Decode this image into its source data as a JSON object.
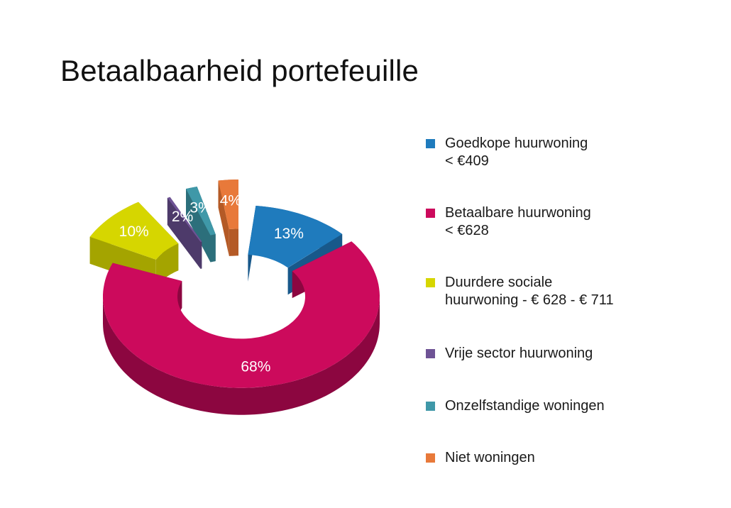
{
  "chart_data": {
    "type": "pie",
    "title": "Betaalbaarheid portefeuille",
    "categories": [
      "Goedkope huurwoning < €409",
      "Betaalbare huurwoning < €628",
      "Duurdere sociale huurwoning - € 628 - € 711",
      "Vrije sector huurwoning",
      "Onzelfstandige woningen",
      "Niet woningen"
    ],
    "values": [
      13,
      68,
      10,
      2,
      3,
      4
    ],
    "data_labels": [
      "13%",
      "68%",
      "10%",
      "2%",
      "3%",
      "4%"
    ],
    "colors": [
      "#1f7bbd",
      "#cc0a5c",
      "#d6d600",
      "#6e5395",
      "#3f98a8",
      "#e8793a"
    ],
    "side_colors": [
      "#18588a",
      "#8c0640",
      "#a4a400",
      "#4d3a6a",
      "#2c6f7b",
      "#b45a26"
    ],
    "legend": [
      {
        "lines": [
          "Goedkope huurwoning",
          "< €409"
        ]
      },
      {
        "lines": [
          "Betaalbare huurwoning",
          "< €628"
        ]
      },
      {
        "lines": [
          "Duurdere sociale",
          "huurwoning - € 628 - € 711"
        ]
      },
      {
        "lines": [
          "Vrije sector huurwoning"
        ]
      },
      {
        "lines": [
          "Onzelfstandige woningen"
        ]
      },
      {
        "lines": [
          "Niet woningen"
        ]
      }
    ],
    "legend_position": "right",
    "style": "3d exploded donut"
  }
}
